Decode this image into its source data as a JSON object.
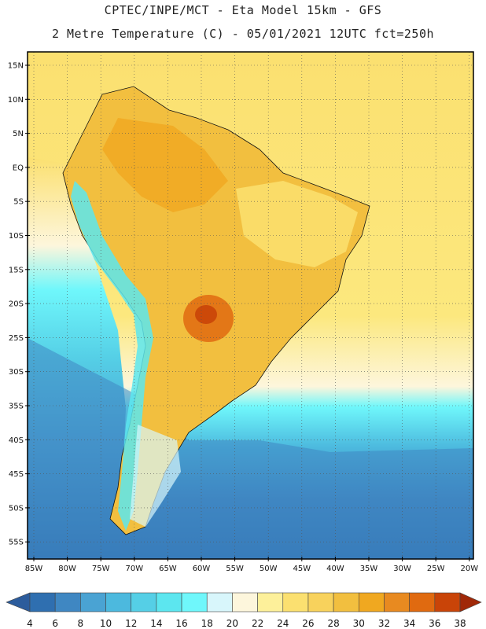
{
  "header": {
    "title_line1": "CPTEC/INPE/MCT  -   Eta Model 15km  -  GFS",
    "title_line2": "2 Metre Temperature (C) - 05/01/2021 12UTC fct=250h"
  },
  "axes": {
    "lat_labels": [
      "15N",
      "10N",
      "5N",
      "EQ",
      "5S",
      "10S",
      "15S",
      "20S",
      "25S",
      "30S",
      "35S",
      "40S",
      "45S",
      "50S",
      "55S"
    ],
    "lon_labels": [
      "85W",
      "80W",
      "75W",
      "70W",
      "65W",
      "60W",
      "55W",
      "50W",
      "45W",
      "40W",
      "35W",
      "30W",
      "25W",
      "20W"
    ]
  },
  "colorbar": {
    "labels": [
      "4",
      "6",
      "8",
      "10",
      "12",
      "14",
      "16",
      "18",
      "20",
      "22",
      "24",
      "26",
      "28",
      "30",
      "32",
      "34",
      "36",
      "38"
    ],
    "colors": [
      "#2c5c9c",
      "#2f6fb0",
      "#3f87c2",
      "#4aa3d3",
      "#4cb9de",
      "#55cfe6",
      "#5ce6ef",
      "#6ff7fb",
      "#d8f6fb",
      "#fdf6dc",
      "#fdf09a",
      "#fbe070",
      "#f8d25c",
      "#f2bf3f",
      "#f0a820",
      "#e88a20",
      "#e06a10",
      "#c94408",
      "#a02808"
    ]
  },
  "colors": {
    "ocean_warm": "#fbe070",
    "land_hot": "#f2bf3f",
    "frame": "#000000"
  }
}
